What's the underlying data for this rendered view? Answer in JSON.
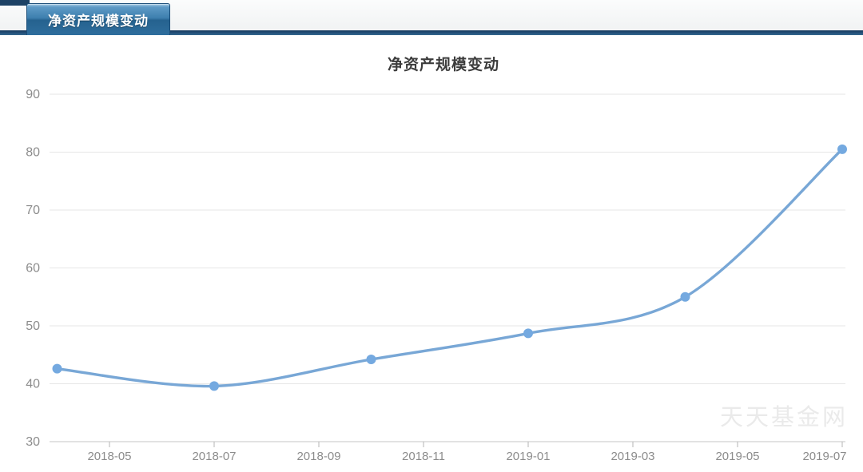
{
  "header": {
    "tab_label": "净资产规模变动"
  },
  "watermark": "天天基金网",
  "colors": {
    "line": "#78a7d6",
    "marker": "#74a9e0",
    "grid": "#e6e6e6",
    "axis": "#c6c6c6",
    "tick": "#b5b5b5",
    "tick_label": "#8c8c8c",
    "title_text": "#3c3c3c",
    "watermark_color": "#eaeaea",
    "tab_navy": "#1d4265",
    "tab_blue": "#2f6e9d"
  },
  "chart_data": {
    "type": "line",
    "title": "净资产规模变动",
    "xlabel": "",
    "ylabel": "",
    "ylim": [
      30,
      90
    ],
    "y_ticks": [
      30,
      40,
      50,
      60,
      70,
      80,
      90
    ],
    "x_ticks": [
      "2018-05",
      "2018-07",
      "2018-09",
      "2018-11",
      "2019-01",
      "2019-03",
      "2019-05",
      "2019-07"
    ],
    "grid": true,
    "grid_direction": "horizontal-only",
    "legend": "none",
    "smooth": true,
    "series": [
      {
        "name": "净资产规模",
        "points": [
          {
            "x": "2018-04",
            "y": 42.6
          },
          {
            "x": "2018-07",
            "y": 39.6
          },
          {
            "x": "2018-10",
            "y": 44.2
          },
          {
            "x": "2019-01",
            "y": 48.7
          },
          {
            "x": "2019-04",
            "y": 55.0
          },
          {
            "x": "2019-07",
            "y": 80.5
          }
        ]
      }
    ]
  }
}
